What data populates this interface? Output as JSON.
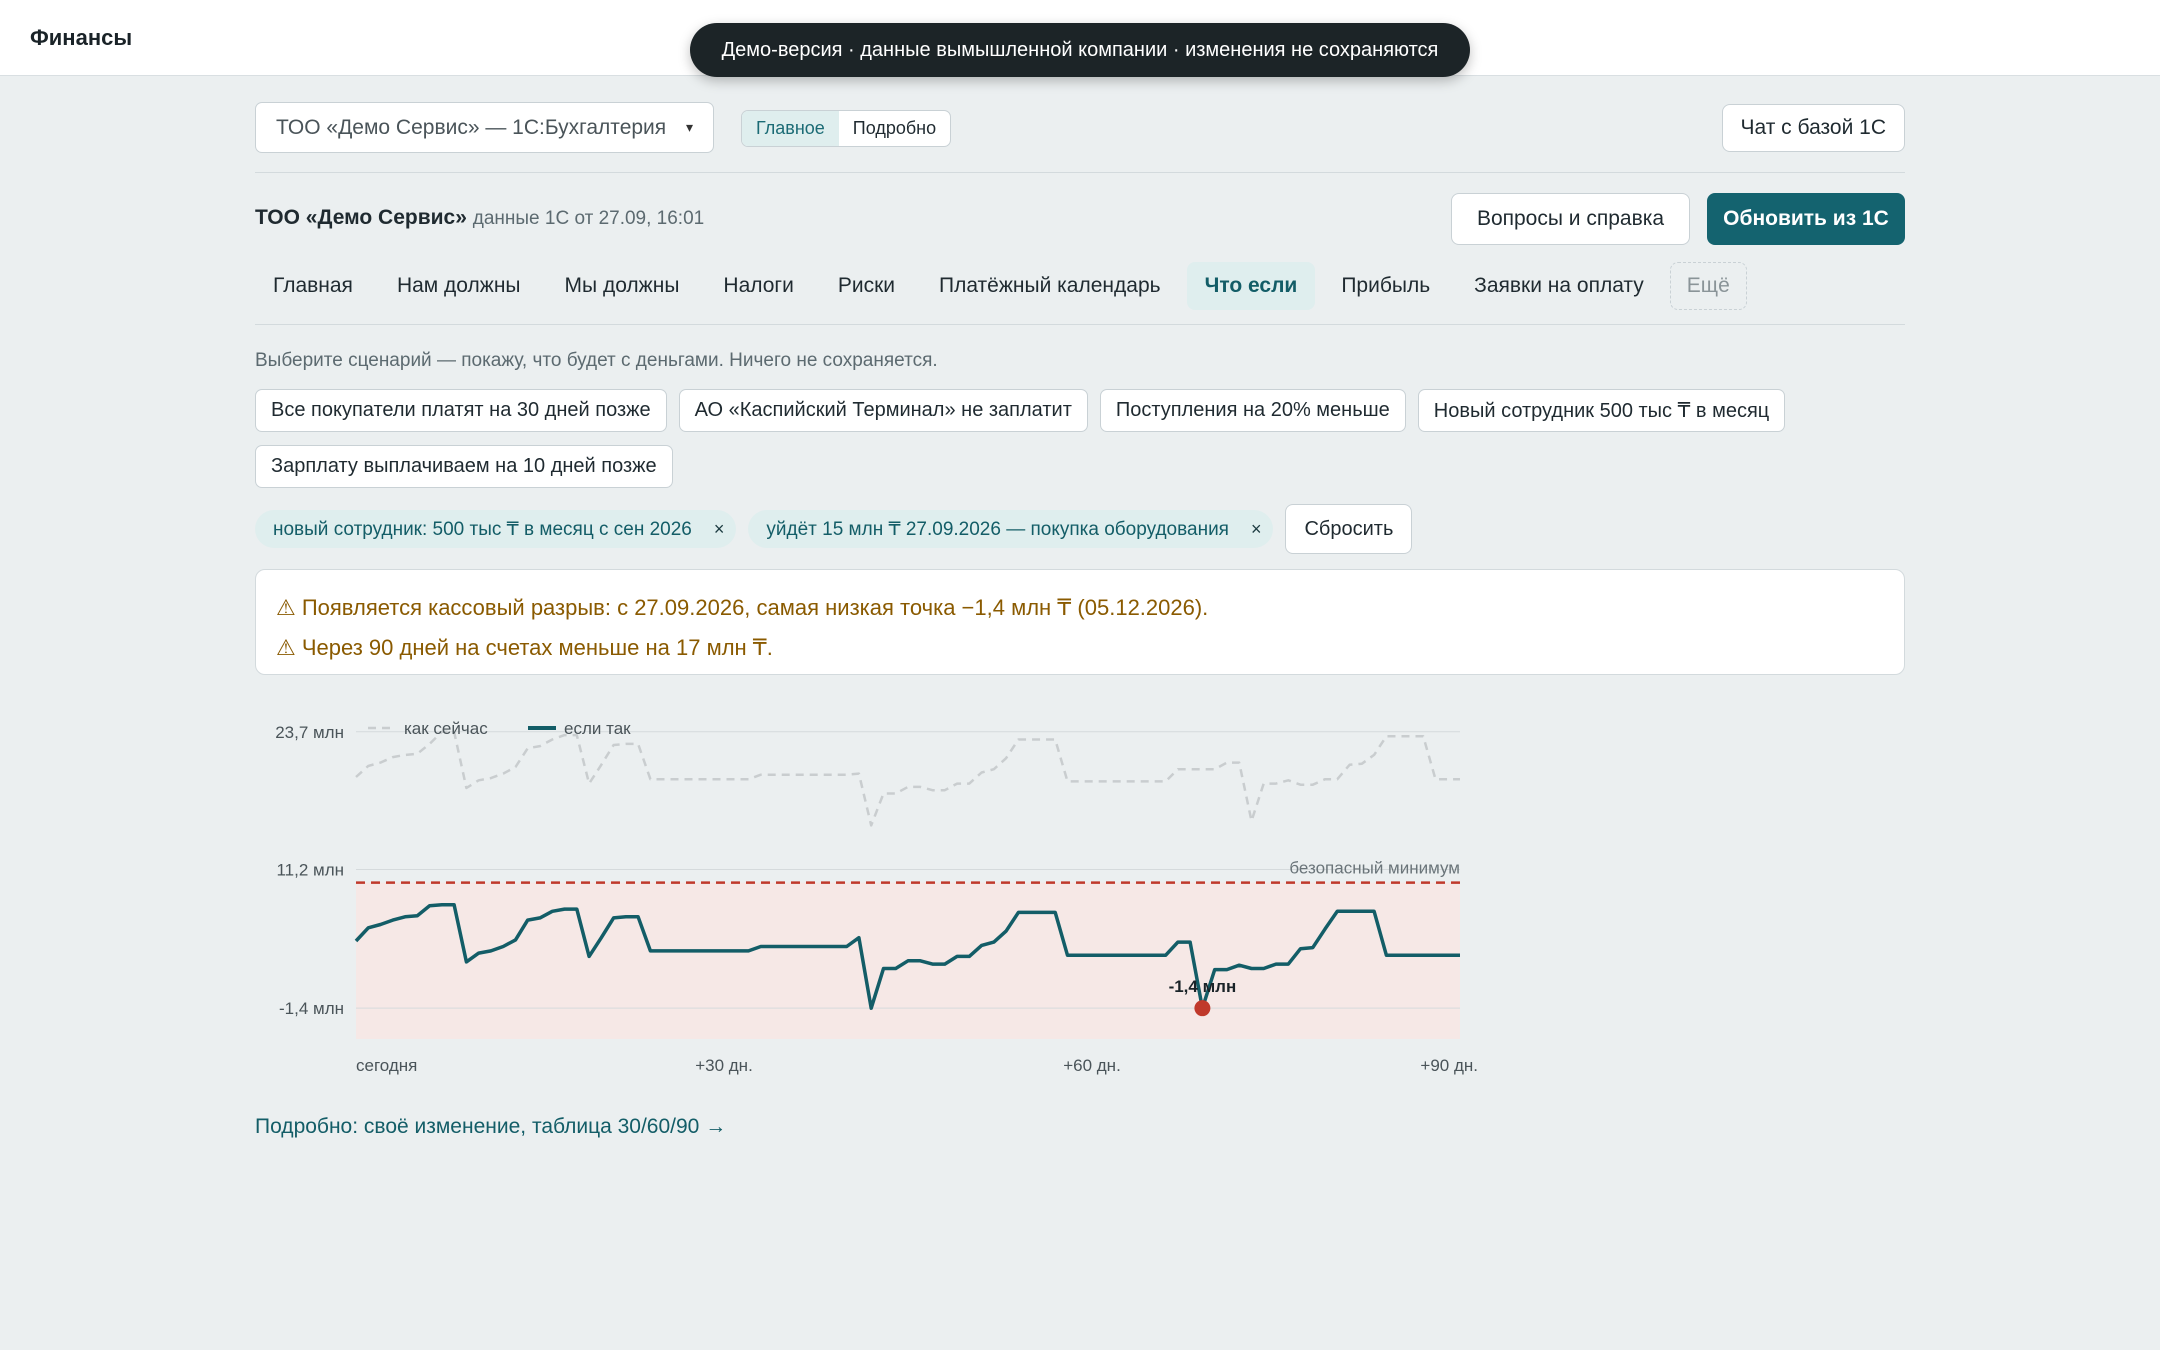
{
  "app": {
    "title": "Финансы",
    "demo_banner": "Демо-версия · данные вымышленной компании · изменения не сохраняются"
  },
  "header": {
    "company_select": "ТОО «Демо Сервис» — 1С:Бухгалтерия",
    "view_toggle": [
      "Главное",
      "Подробно"
    ],
    "chat_button": "Чат с базой 1С"
  },
  "company": {
    "name": "ТОО «Демо Сервис»",
    "meta": "данные 1С от 27.09, 16:01",
    "help_button": "Вопросы и справка",
    "refresh_button": "Обновить из 1С"
  },
  "tabs": [
    "Главная",
    "Нам должны",
    "Мы должны",
    "Налоги",
    "Риски",
    "Платёжный календарь",
    "Что если",
    "Прибыль",
    "Заявки на оплату",
    "Ещё"
  ],
  "whatif": {
    "hint": "Выберите сценарий — покажу, что будет с деньгами. Ничего не сохраняется.",
    "scenarios": [
      "Все покупатели платят на 30 дней позже",
      "АО «Каспийский Терминал» не заплатит",
      "Поступления на 20% меньше",
      "Новый сотрудник 500 тыс ₸ в месяц",
      "Зарплату выплачиваем на 10 дней позже"
    ],
    "active": [
      "новый сотрудник: 500 тыс ₸ в месяц с сен 2026",
      "уйдёт 15 млн ₸ 27.09.2026 — покупка оборудования"
    ],
    "chip_close": "×",
    "reset": "Сбросить",
    "alerts": [
      "⚠ Появляется кассовый разрыв: с 27.09.2026, самая низкая точка −1,4 млн ₸ (05.12.2026).",
      "⚠ Через 90 дней на счетах меньше на 17 млн ₸."
    ]
  },
  "chart_data": {
    "type": "line",
    "legend": [
      "как сейчас",
      "если так"
    ],
    "legend_placement": "top-left",
    "x_tick_labels": [
      "сегодня",
      "+30 дн.",
      "+60 дн.",
      "+90 дн."
    ],
    "y_tick_labels": [
      "23,7 млн",
      "11,2 млн",
      "-1,4 млн"
    ],
    "y_ticks": [
      23.7,
      11.2,
      -1.4
    ],
    "ylim": [
      -4.2,
      24.5
    ],
    "xlim": [
      0,
      90
    ],
    "threshold": {
      "label": "безопасный минимум",
      "value": 10.0
    },
    "min_point": {
      "label": "-1,4 млн",
      "day": 69,
      "value": -1.4
    },
    "series": [
      {
        "name": "как сейчас",
        "style": "dashed",
        "color": "#c9cdcf",
        "x": [
          0,
          1,
          2,
          3,
          4,
          5,
          6,
          7,
          8,
          9,
          10,
          11,
          12,
          13,
          14,
          15,
          16,
          17,
          18,
          19,
          20,
          21,
          22,
          23,
          24,
          25,
          26,
          27,
          28,
          29,
          30,
          31,
          32,
          33,
          34,
          35,
          36,
          37,
          38,
          39,
          40,
          41,
          42,
          43,
          44,
          45,
          46,
          47,
          48,
          49,
          50,
          51,
          52,
          53,
          54,
          55,
          56,
          57,
          58,
          59,
          60,
          61,
          62,
          63,
          64,
          65,
          66,
          67,
          68,
          69,
          70,
          71,
          72,
          73,
          74,
          75,
          76,
          77,
          78,
          79,
          80,
          81,
          82,
          83,
          84,
          85,
          86,
          87,
          88,
          89,
          90
        ],
        "y": [
          19.6,
          20.6,
          20.9,
          21.4,
          21.6,
          21.7,
          22.6,
          23.7,
          23.7,
          18.6,
          19.3,
          19.5,
          19.9,
          20.5,
          22.2,
          22.4,
          23.0,
          23.4,
          23.4,
          19.0,
          20.7,
          22.5,
          22.6,
          22.6,
          19.4,
          19.4,
          19.4,
          19.4,
          19.4,
          19.4,
          19.4,
          19.4,
          19.4,
          19.8,
          19.8,
          19.8,
          19.8,
          19.8,
          19.8,
          19.8,
          19.8,
          19.9,
          15.2,
          18.1,
          18.1,
          18.7,
          18.7,
          18.4,
          18.4,
          19.0,
          19.0,
          20.0,
          20.3,
          21.3,
          23.0,
          23.0,
          23.0,
          23.0,
          19.2,
          19.2,
          19.2,
          19.2,
          19.2,
          19.2,
          19.2,
          19.2,
          19.2,
          20.3,
          20.3,
          20.3,
          20.3,
          20.9,
          20.9,
          15.6,
          19.0,
          19.0,
          19.3,
          18.9,
          18.9,
          19.4,
          19.4,
          20.7,
          20.8,
          21.6,
          23.3,
          23.3,
          23.3,
          23.3,
          19.4,
          19.4,
          19.4
        ],
        "note": "values approximated by a shifted copy of the «если так» series"
      },
      {
        "name": "если так",
        "style": "solid",
        "color": "#135d67",
        "x": [
          0,
          1,
          2,
          3,
          4,
          5,
          6,
          7,
          8,
          9,
          10,
          11,
          12,
          13,
          14,
          15,
          16,
          17,
          18,
          19,
          20,
          21,
          22,
          23,
          24,
          25,
          26,
          27,
          28,
          29,
          30,
          31,
          32,
          33,
          34,
          35,
          36,
          37,
          38,
          39,
          40,
          41,
          42,
          43,
          44,
          45,
          46,
          47,
          48,
          49,
          50,
          51,
          52,
          53,
          54,
          55,
          56,
          57,
          58,
          59,
          60,
          61,
          62,
          63,
          64,
          65,
          66,
          67,
          68,
          69,
          70,
          71,
          72,
          73,
          74,
          75,
          76,
          77,
          78,
          79,
          80,
          81,
          82,
          83,
          84,
          85,
          86,
          87,
          88,
          89,
          90
        ],
        "y": [
          4.7,
          5.9,
          6.2,
          6.6,
          6.9,
          7.0,
          7.9,
          8.0,
          8.0,
          2.8,
          3.6,
          3.8,
          4.2,
          4.8,
          6.6,
          6.8,
          7.4,
          7.6,
          7.6,
          3.3,
          5.0,
          6.8,
          6.9,
          6.9,
          3.8,
          3.8,
          3.8,
          3.8,
          3.8,
          3.8,
          3.8,
          3.8,
          3.8,
          4.2,
          4.2,
          4.2,
          4.2,
          4.2,
          4.2,
          4.2,
          4.2,
          5.0,
          -1.4,
          2.2,
          2.2,
          2.9,
          2.9,
          2.6,
          2.6,
          3.3,
          3.3,
          4.3,
          4.6,
          5.6,
          7.3,
          7.3,
          7.3,
          7.3,
          3.4,
          3.4,
          3.4,
          3.4,
          3.4,
          3.4,
          3.4,
          3.4,
          3.4,
          4.6,
          4.6,
          -1.4,
          2.1,
          2.1,
          2.5,
          2.2,
          2.2,
          2.6,
          2.6,
          4.0,
          4.1,
          5.8,
          7.4,
          7.4,
          7.4,
          7.4,
          3.4,
          3.4,
          3.4,
          3.4,
          3.4,
          3.4,
          3.4
        ]
      }
    ]
  },
  "detail_link": "Подробно: своё изменение, таблица 30/60/90 →"
}
